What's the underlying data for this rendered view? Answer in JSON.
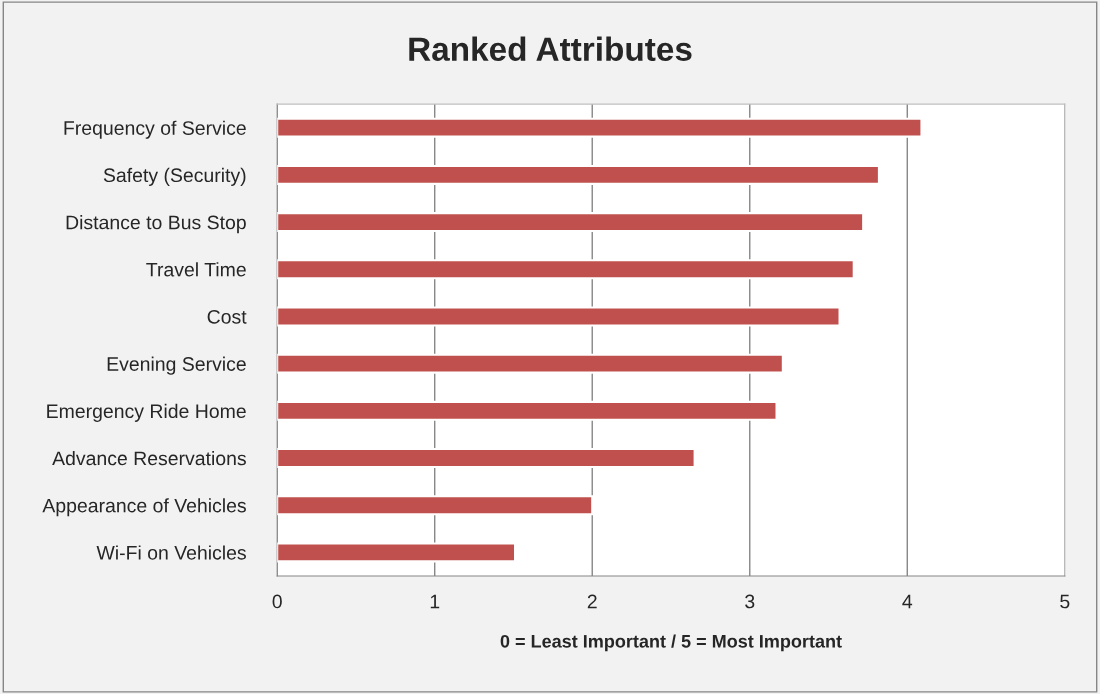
{
  "chart_data": {
    "type": "bar",
    "orientation": "horizontal",
    "title": "Ranked Attributes",
    "xlabel": "0 = Least Important / 5 = Most Important",
    "categories": [
      "Frequency of Service",
      "Safety (Security)",
      "Distance to Bus Stop",
      "Travel Time",
      "Cost",
      "Evening Service",
      "Emergency Ride Home",
      "Advance Reservations",
      "Appearance of Vehicles",
      "Wi-Fi on Vehicles"
    ],
    "values": [
      4.09,
      3.82,
      3.72,
      3.66,
      3.57,
      3.21,
      3.17,
      2.65,
      2.0,
      1.51
    ],
    "color": "#c0504d",
    "xlim": [
      0,
      5
    ],
    "xticks": [
      0,
      1,
      2,
      3,
      4,
      5
    ],
    "grid": "x",
    "legend": false
  }
}
